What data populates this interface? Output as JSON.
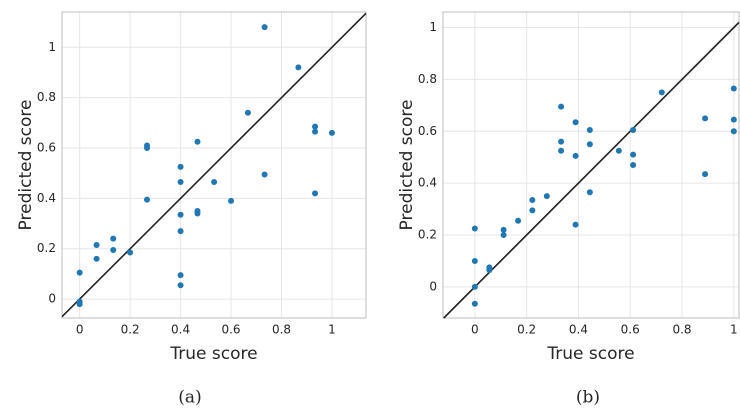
{
  "chart_data": [
    {
      "type": "scatter",
      "xlabel": "True score",
      "ylabel": "Predicted score",
      "caption": "(a)",
      "color": "#1f77b4",
      "grid": true,
      "diagonal": true,
      "xlim": [
        -0.07,
        1.135
      ],
      "ylim": [
        -0.075,
        1.14
      ],
      "xticks": [
        0,
        0.2,
        0.4,
        0.6,
        0.8,
        1
      ],
      "yticks": [
        0,
        0.2,
        0.4,
        0.6,
        0.8,
        1
      ],
      "x": [
        0,
        0,
        0,
        0.067,
        0.067,
        0.133,
        0.133,
        0.2,
        0.267,
        0.267,
        0.267,
        0.4,
        0.4,
        0.4,
        0.4,
        0.4,
        0.4,
        0.467,
        0.467,
        0.467,
        0.533,
        0.6,
        0.667,
        0.733,
        0.733,
        0.867,
        0.933,
        0.933,
        0.933,
        1
      ],
      "values": [
        0.105,
        -0.01,
        -0.02,
        0.215,
        0.16,
        0.24,
        0.195,
        0.185,
        0.61,
        0.6,
        0.395,
        0.525,
        0.465,
        0.335,
        0.27,
        0.095,
        0.055,
        0.625,
        0.35,
        0.34,
        0.465,
        0.39,
        0.74,
        1.08,
        0.495,
        0.92,
        0.685,
        0.665,
        0.42,
        0.66
      ]
    },
    {
      "type": "scatter",
      "xlabel": "True score",
      "ylabel": "Predicted score",
      "caption": "(b)",
      "color": "#1f77b4",
      "grid": true,
      "diagonal": true,
      "xlim": [
        -0.123,
        1.02
      ],
      "ylim": [
        -0.12,
        1.06
      ],
      "xticks": [
        0,
        0.2,
        0.4,
        0.6,
        0.8,
        1
      ],
      "yticks": [
        0,
        0.2,
        0.4,
        0.6,
        0.8,
        1
      ],
      "x": [
        0,
        0,
        0,
        0,
        0.056,
        0.056,
        0.111,
        0.111,
        0.167,
        0.222,
        0.222,
        0.278,
        0.333,
        0.333,
        0.333,
        0.389,
        0.389,
        0.389,
        0.444,
        0.444,
        0.444,
        0.556,
        0.611,
        0.611,
        0.611,
        0.722,
        0.889,
        0.889,
        1,
        1,
        1
      ],
      "values": [
        0.225,
        0.1,
        0,
        -0.065,
        0.075,
        0.065,
        0.22,
        0.2,
        0.255,
        0.335,
        0.295,
        0.35,
        0.695,
        0.56,
        0.525,
        0.635,
        0.505,
        0.24,
        0.605,
        0.55,
        0.365,
        0.525,
        0.605,
        0.51,
        0.47,
        0.75,
        0.65,
        0.435,
        0.765,
        0.645,
        0.6
      ]
    }
  ]
}
